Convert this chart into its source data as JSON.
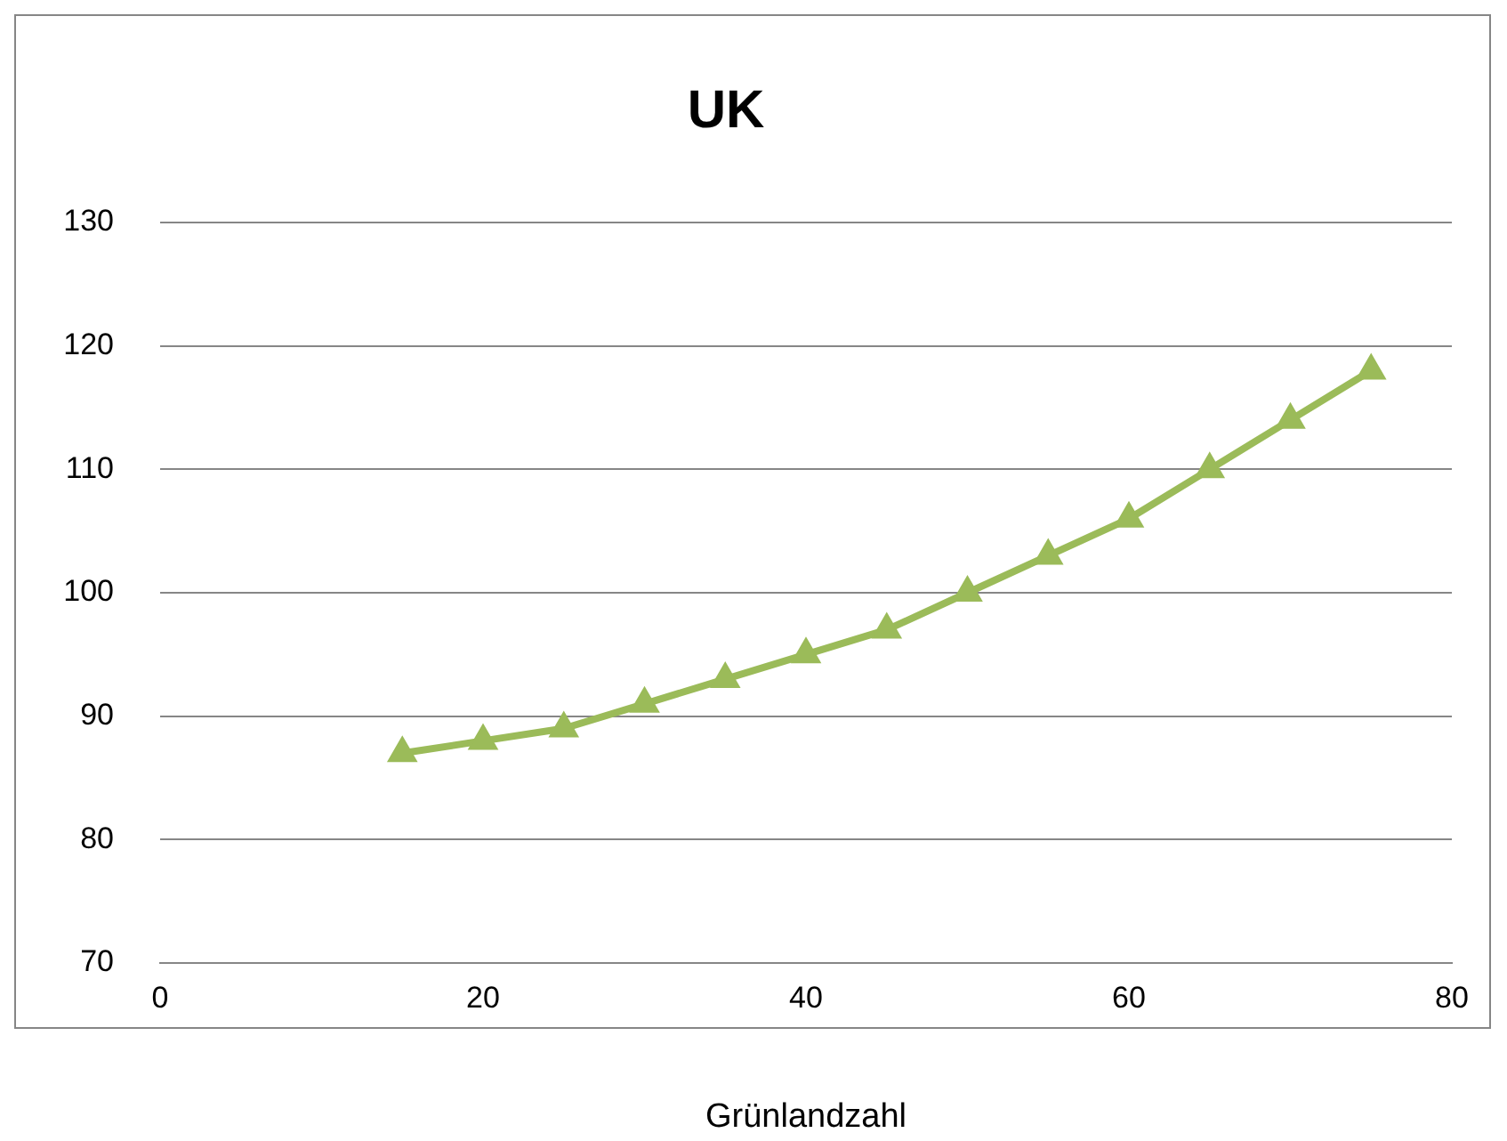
{
  "chart_data": {
    "type": "line",
    "title": "UK",
    "xlabel": "Grünlandzahl",
    "x": [
      15,
      20,
      25,
      30,
      35,
      40,
      45,
      50,
      55,
      60,
      65,
      70,
      75
    ],
    "series": [
      {
        "color": "#9bbb59",
        "values": [
          87,
          88,
          89,
          91,
          93,
          95,
          97,
          100,
          103,
          106,
          110,
          114,
          118
        ]
      }
    ],
    "xlim": [
      0,
      80
    ],
    "xticks": [
      0,
      20,
      40,
      60,
      80
    ],
    "ylim": [
      70,
      130
    ],
    "yticks": [
      70,
      80,
      90,
      100,
      110,
      120,
      130
    ],
    "grid": "y",
    "legend": false,
    "marker": "triangle",
    "line_style": "solid"
  }
}
